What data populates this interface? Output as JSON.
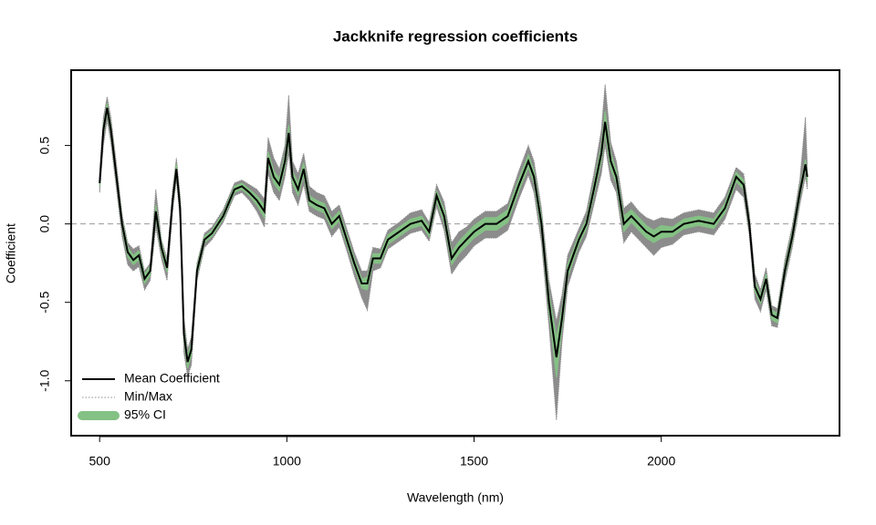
{
  "chart_data": {
    "type": "line",
    "title": "Jackknife regression coefficients",
    "x_label": "Wavelength (nm)",
    "y_label": "Coefficient",
    "xlim": [
      424,
      2476
    ],
    "ylim": [
      -1.35,
      0.98
    ],
    "xticks": [
      500,
      1000,
      1500,
      2000
    ],
    "yticks": [
      {
        "value": -1.0,
        "label": "-1.0"
      },
      {
        "value": -0.5,
        "label": "-0.5"
      },
      {
        "value": 0.0,
        "label": "0.0"
      },
      {
        "value": 0.5,
        "label": "0.5"
      }
    ],
    "hline": 0,
    "legend": "bottomleft",
    "x": [
      500,
      510,
      520,
      530,
      545,
      560,
      575,
      590,
      605,
      620,
      635,
      650,
      665,
      680,
      695,
      705,
      715,
      725,
      735,
      745,
      760,
      780,
      800,
      830,
      860,
      880,
      900,
      920,
      940,
      950,
      965,
      980,
      995,
      1005,
      1015,
      1030,
      1045,
      1060,
      1080,
      1100,
      1120,
      1140,
      1160,
      1180,
      1200,
      1215,
      1230,
      1250,
      1270,
      1300,
      1330,
      1360,
      1380,
      1400,
      1420,
      1440,
      1460,
      1480,
      1500,
      1530,
      1560,
      1590,
      1620,
      1645,
      1660,
      1680,
      1700,
      1720,
      1735,
      1750,
      1780,
      1800,
      1820,
      1840,
      1850,
      1865,
      1880,
      1900,
      1920,
      1940,
      1960,
      1980,
      2000,
      2030,
      2060,
      2100,
      2140,
      2170,
      2200,
      2220,
      2235,
      2250,
      2265,
      2280,
      2295,
      2310,
      2330,
      2350,
      2370,
      2385,
      2390
    ],
    "series": [
      {
        "name": "Mean Coefficient",
        "color": "#000000",
        "values": [
          0.26,
          0.6,
          0.74,
          0.6,
          0.3,
          0,
          -0.18,
          -0.23,
          -0.2,
          -0.35,
          -0.3,
          0.08,
          -0.15,
          -0.28,
          0.15,
          0.35,
          0.1,
          -0.7,
          -0.88,
          -0.8,
          -0.3,
          -0.1,
          -0.06,
          0.05,
          0.22,
          0.24,
          0.2,
          0.15,
          0.08,
          0.42,
          0.3,
          0.25,
          0.4,
          0.58,
          0.3,
          0.22,
          0.35,
          0.15,
          0.12,
          0.1,
          0,
          0.05,
          -0.1,
          -0.25,
          -0.38,
          -0.38,
          -0.22,
          -0.22,
          -0.1,
          -0.05,
          0,
          0.02,
          -0.05,
          0.18,
          0.05,
          -0.22,
          -0.15,
          -0.1,
          -0.05,
          0,
          0,
          0.05,
          0.25,
          0.4,
          0.3,
          0,
          -0.5,
          -0.85,
          -0.6,
          -0.3,
          -0.1,
          0,
          0.22,
          0.45,
          0.65,
          0.4,
          0.3,
          0,
          0.05,
          0,
          -0.05,
          -0.08,
          -0.05,
          -0.05,
          0,
          0.02,
          0,
          0.1,
          0.3,
          0.25,
          0,
          -0.4,
          -0.48,
          -0.35,
          -0.58,
          -0.6,
          -0.3,
          -0.08,
          0.2,
          0.38,
          0.3
        ]
      },
      {
        "name": "Min/Max",
        "color": "#8c8c8c",
        "lower": [
          0.2,
          0.5,
          0.66,
          0.52,
          0.22,
          -0.08,
          -0.26,
          -0.3,
          -0.27,
          -0.42,
          -0.36,
          -0.02,
          -0.22,
          -0.36,
          0.08,
          0.28,
          0.02,
          -0.82,
          -0.97,
          -0.9,
          -0.36,
          -0.15,
          -0.1,
          0.01,
          0.18,
          0.2,
          0.15,
          0.08,
          -0.02,
          0.32,
          0.2,
          0.15,
          0.3,
          0.45,
          0.2,
          0.12,
          0.25,
          0.08,
          0.05,
          0.03,
          -0.08,
          -0.02,
          -0.17,
          -0.33,
          -0.47,
          -0.55,
          -0.3,
          -0.28,
          -0.16,
          -0.11,
          -0.06,
          -0.04,
          -0.11,
          0.11,
          -0.04,
          -0.32,
          -0.25,
          -0.2,
          -0.14,
          -0.09,
          -0.09,
          -0.04,
          0.16,
          0.31,
          0.2,
          -0.12,
          -0.65,
          -1.25,
          -0.75,
          -0.4,
          -0.18,
          -0.08,
          0.12,
          0.32,
          0.5,
          0.28,
          0.2,
          -0.12,
          -0.05,
          -0.1,
          -0.15,
          -0.2,
          -0.15,
          -0.13,
          -0.07,
          -0.05,
          -0.07,
          0.03,
          0.22,
          0.17,
          -0.07,
          -0.48,
          -0.56,
          -0.42,
          -0.65,
          -0.66,
          -0.37,
          -0.15,
          0.12,
          0.3,
          0.22
        ],
        "upper": [
          0.32,
          0.68,
          0.81,
          0.68,
          0.38,
          0.06,
          -0.12,
          -0.16,
          -0.14,
          -0.3,
          -0.25,
          0.22,
          -0.1,
          -0.22,
          0.22,
          0.42,
          0.18,
          -0.6,
          -0.8,
          -0.72,
          -0.25,
          -0.06,
          -0.02,
          0.09,
          0.26,
          0.28,
          0.25,
          0.22,
          0.16,
          0.55,
          0.42,
          0.35,
          0.5,
          0.82,
          0.4,
          0.32,
          0.45,
          0.24,
          0.2,
          0.18,
          0.08,
          0.12,
          -0.03,
          -0.18,
          -0.3,
          -0.3,
          -0.15,
          -0.16,
          -0.04,
          0.01,
          0.07,
          0.09,
          0.01,
          0.25,
          0.14,
          -0.12,
          -0.05,
          -0.02,
          0.03,
          0.08,
          0.08,
          0.13,
          0.34,
          0.5,
          0.4,
          0.1,
          -0.36,
          -0.62,
          -0.45,
          -0.2,
          -0.03,
          0.08,
          0.32,
          0.6,
          0.89,
          0.52,
          0.4,
          0.1,
          0.14,
          0.08,
          0.04,
          0.02,
          0.04,
          0.03,
          0.07,
          0.09,
          0.07,
          0.17,
          0.36,
          0.32,
          0.07,
          -0.32,
          -0.42,
          -0.28,
          -0.52,
          -0.54,
          -0.23,
          -0.01,
          0.28,
          0.68,
          0.38
        ]
      },
      {
        "name": "95% CI",
        "color": "#84c184",
        "lower": [
          0.24,
          0.57,
          0.71,
          0.57,
          0.27,
          -0.03,
          -0.21,
          -0.26,
          -0.23,
          -0.38,
          -0.33,
          0.04,
          -0.18,
          -0.31,
          0.12,
          0.32,
          0.06,
          -0.74,
          -0.92,
          -0.84,
          -0.33,
          -0.12,
          -0.08,
          0.03,
          0.2,
          0.22,
          0.18,
          0.12,
          0.04,
          0.38,
          0.26,
          0.21,
          0.36,
          0.53,
          0.26,
          0.18,
          0.31,
          0.12,
          0.09,
          0.07,
          -0.03,
          0.02,
          -0.13,
          -0.28,
          -0.41,
          -0.42,
          -0.25,
          -0.25,
          -0.13,
          -0.08,
          -0.03,
          -0.01,
          -0.08,
          0.15,
          0.01,
          -0.26,
          -0.19,
          -0.14,
          -0.09,
          -0.04,
          -0.04,
          0.01,
          0.21,
          0.36,
          0.26,
          -0.05,
          -0.56,
          -0.98,
          -0.66,
          -0.34,
          -0.13,
          -0.03,
          0.18,
          0.4,
          0.58,
          0.35,
          0.26,
          -0.05,
          0.01,
          -0.04,
          -0.09,
          -0.12,
          -0.09,
          -0.08,
          -0.03,
          -0.01,
          -0.03,
          0.07,
          0.27,
          0.22,
          -0.03,
          -0.43,
          -0.51,
          -0.38,
          -0.61,
          -0.63,
          -0.33,
          -0.11,
          0.17,
          0.35,
          0.27
        ],
        "upper": [
          0.28,
          0.63,
          0.77,
          0.63,
          0.33,
          0.03,
          -0.15,
          -0.2,
          -0.17,
          -0.32,
          -0.27,
          0.12,
          -0.12,
          -0.25,
          0.18,
          0.38,
          0.14,
          -0.66,
          -0.84,
          -0.76,
          -0.27,
          -0.08,
          -0.04,
          0.07,
          0.24,
          0.26,
          0.22,
          0.18,
          0.12,
          0.46,
          0.34,
          0.29,
          0.44,
          0.63,
          0.34,
          0.26,
          0.39,
          0.18,
          0.15,
          0.13,
          0.03,
          0.08,
          -0.07,
          -0.22,
          -0.35,
          -0.34,
          -0.19,
          -0.19,
          -0.07,
          -0.02,
          0.03,
          0.05,
          -0.02,
          0.21,
          0.09,
          -0.18,
          -0.11,
          -0.06,
          -0.01,
          0.04,
          0.04,
          0.09,
          0.29,
          0.44,
          0.34,
          0.05,
          -0.44,
          -0.72,
          -0.54,
          -0.26,
          -0.07,
          0.03,
          0.26,
          0.5,
          0.72,
          0.45,
          0.34,
          0.05,
          0.09,
          0.04,
          -0.01,
          -0.04,
          -0.01,
          -0.02,
          0.03,
          0.05,
          0.03,
          0.13,
          0.33,
          0.28,
          0.03,
          -0.37,
          -0.45,
          -0.32,
          -0.55,
          -0.57,
          -0.27,
          -0.05,
          0.23,
          0.41,
          0.33
        ]
      }
    ]
  }
}
